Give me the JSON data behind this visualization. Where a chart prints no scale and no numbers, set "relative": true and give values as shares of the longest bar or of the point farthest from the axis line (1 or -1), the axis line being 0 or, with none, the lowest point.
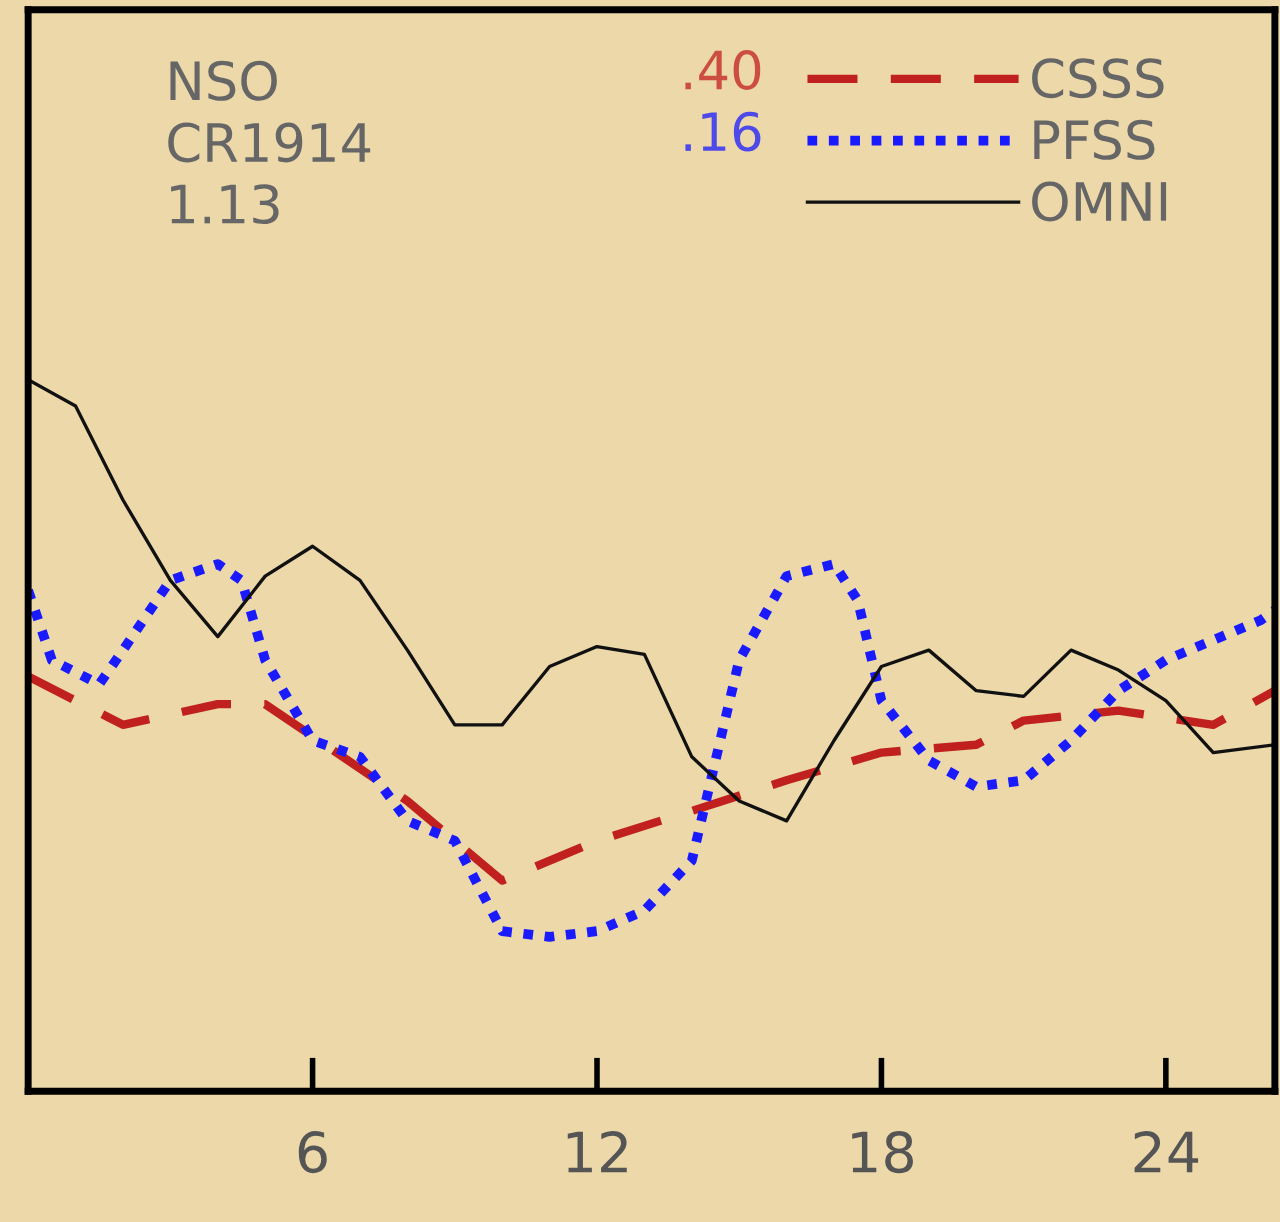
{
  "chart_data": {
    "type": "line",
    "relative": true,
    "xlim": [
      0,
      26.3
    ],
    "xticks": [
      6,
      12,
      18,
      24
    ],
    "annotations": [
      "NSO",
      "CR1914",
      "1.13",
      ".40",
      ".16"
    ],
    "legend": "top right",
    "grid": false,
    "series": [
      {
        "name": "CSSS",
        "color": "#c0201e",
        "line_style": "dashed",
        "x": [
          0,
          2,
          4,
          5,
          6,
          8,
          10,
          12,
          14,
          16,
          18,
          20,
          21,
          23,
          25,
          26.3
        ],
        "values": [
          0.583,
          0.515,
          0.544,
          0.544,
          0.499,
          0.408,
          0.296,
          0.352,
          0.394,
          0.437,
          0.476,
          0.487,
          0.521,
          0.535,
          0.515,
          0.563
        ]
      },
      {
        "name": "PFSS",
        "color": "#1a1aff",
        "line_style": "dotted",
        "x": [
          0,
          0.5,
          1.5,
          2,
          3,
          4,
          4.5,
          5,
          6,
          7,
          8,
          9,
          10,
          11,
          12,
          13,
          14,
          14.5,
          15,
          16,
          17,
          17.5,
          18,
          19,
          20,
          21,
          22,
          23,
          24,
          25,
          26,
          26.3
        ],
        "values": [
          0.704,
          0.606,
          0.572,
          0.62,
          0.718,
          0.741,
          0.718,
          0.606,
          0.493,
          0.47,
          0.38,
          0.352,
          0.225,
          0.217,
          0.225,
          0.254,
          0.324,
          0.465,
          0.606,
          0.724,
          0.741,
          0.69,
          0.549,
          0.465,
          0.428,
          0.437,
          0.493,
          0.563,
          0.606,
          0.634,
          0.662,
          0.676
        ]
      },
      {
        "name": "OMNI",
        "color": "#111111",
        "line_style": "solid",
        "x": [
          0,
          1,
          2,
          3,
          4,
          5,
          6,
          7,
          8,
          9,
          10,
          11,
          12,
          13,
          14,
          15,
          16,
          17,
          18,
          19,
          20,
          21,
          22,
          23,
          24,
          25,
          26.3
        ],
        "values": [
          1.0,
          0.963,
          0.831,
          0.718,
          0.639,
          0.724,
          0.766,
          0.718,
          0.62,
          0.515,
          0.515,
          0.597,
          0.625,
          0.614,
          0.47,
          0.408,
          0.38,
          0.493,
          0.597,
          0.62,
          0.563,
          0.555,
          0.62,
          0.592,
          0.549,
          0.476,
          0.487
        ]
      }
    ]
  }
}
